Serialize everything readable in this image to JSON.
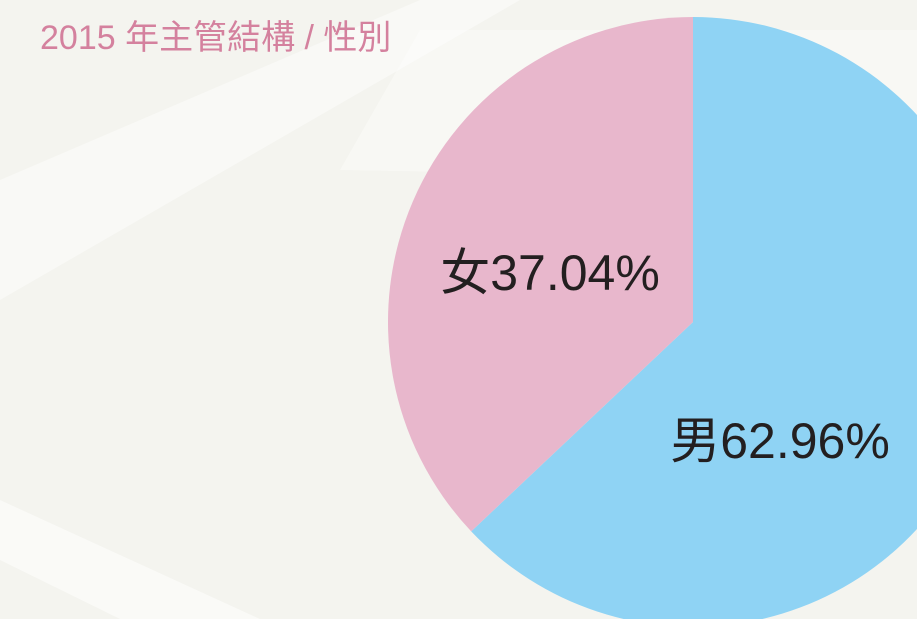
{
  "chart_data": {
    "type": "pie",
    "title": "2015 年主管結構 / 性別",
    "categories": [
      "男",
      "女"
    ],
    "values": [
      62.96,
      37.04
    ],
    "value_labels": [
      "62.96%",
      "37.04%"
    ],
    "colors": [
      "#8fd3f4",
      "#e8b7cc"
    ]
  }
}
